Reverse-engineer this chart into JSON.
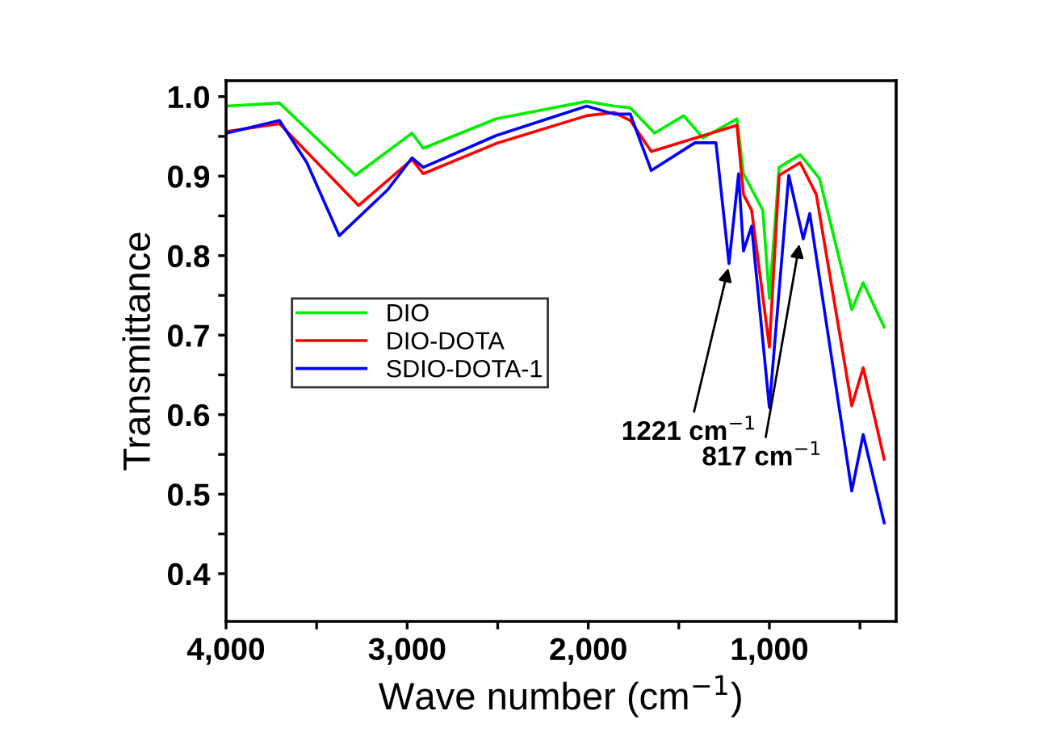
{
  "chart_data": {
    "type": "line",
    "xlabel": "Wave number (cm$^{−1}$)",
    "ylabel": "Transmittance",
    "xlim": [
      4000,
      300
    ],
    "ylim": [
      0.34,
      1.02
    ],
    "xticks": [
      {
        "value": 4000,
        "label": "4,000"
      },
      {
        "value": 3500,
        "label": null
      },
      {
        "value": 3000,
        "label": "3,000"
      },
      {
        "value": 2500,
        "label": null
      },
      {
        "value": 2000,
        "label": "2,000"
      },
      {
        "value": 1500,
        "label": null
      },
      {
        "value": 1000,
        "label": "1,000"
      },
      {
        "value": 500,
        "label": null
      }
    ],
    "yticks": [
      0.4,
      {
        "value": 0.45,
        "label": null
      },
      0.5,
      {
        "value": 0.55,
        "label": null
      },
      0.6,
      {
        "value": 0.65,
        "label": null
      },
      0.7,
      {
        "value": 0.75,
        "label": null
      },
      0.8,
      {
        "value": 0.85,
        "label": null
      },
      0.9,
      {
        "value": 0.95,
        "label": null
      },
      {
        "value": 1.0,
        "label": "1.0"
      }
    ],
    "legend": "center left",
    "grid": false,
    "line_style": "solid",
    "marker": "none",
    "series": [
      {
        "name": "DIO",
        "color": "#00ee00",
        "x": [
          4000,
          3705,
          3286,
          2973,
          2911,
          2509,
          2009,
          1857,
          1768,
          1634,
          1473,
          1366,
          1179,
          1143,
          1036,
          1000,
          946,
          830,
          723,
          545,
          482,
          366
        ],
        "values": [
          0.988,
          0.992,
          0.901,
          0.954,
          0.935,
          0.972,
          0.994,
          0.988,
          0.986,
          0.954,
          0.976,
          0.948,
          0.972,
          0.903,
          0.857,
          0.746,
          0.911,
          0.927,
          0.897,
          0.732,
          0.766,
          0.71
        ]
      },
      {
        "name": "DIO-DOTA",
        "color": "#ff0000",
        "x": [
          4000,
          3705,
          3268,
          2973,
          2911,
          2509,
          2009,
          1857,
          1768,
          1652,
          1179,
          1143,
          1098,
          1000,
          946,
          830,
          741,
          545,
          482,
          366
        ],
        "values": [
          0.956,
          0.966,
          0.863,
          0.921,
          0.903,
          0.941,
          0.976,
          0.98,
          0.97,
          0.931,
          0.964,
          0.877,
          0.857,
          0.685,
          0.901,
          0.917,
          0.877,
          0.611,
          0.659,
          0.544
        ]
      },
      {
        "name": "SDIO-DOTA-1",
        "color": "#0000ff",
        "x": [
          4000,
          3705,
          3554,
          3375,
          3107,
          2973,
          2911,
          2509,
          2009,
          1857,
          1768,
          1652,
          1411,
          1295,
          1223,
          1170,
          1143,
          1098,
          1000,
          893,
          813,
          777,
          545,
          482,
          366
        ],
        "values": [
          0.954,
          0.97,
          0.917,
          0.825,
          0.883,
          0.923,
          0.911,
          0.951,
          0.988,
          0.978,
          0.978,
          0.907,
          0.942,
          0.942,
          0.79,
          0.903,
          0.806,
          0.837,
          0.609,
          0.901,
          0.821,
          0.853,
          0.504,
          0.575,
          0.464
        ]
      }
    ],
    "annotations": [
      {
        "text": "1221 cm$^{−1}$",
        "x": 1221,
        "y": 0.79
      },
      {
        "text": "817 cm$^{−1}$",
        "x": 830,
        "y": 0.82
      }
    ]
  }
}
